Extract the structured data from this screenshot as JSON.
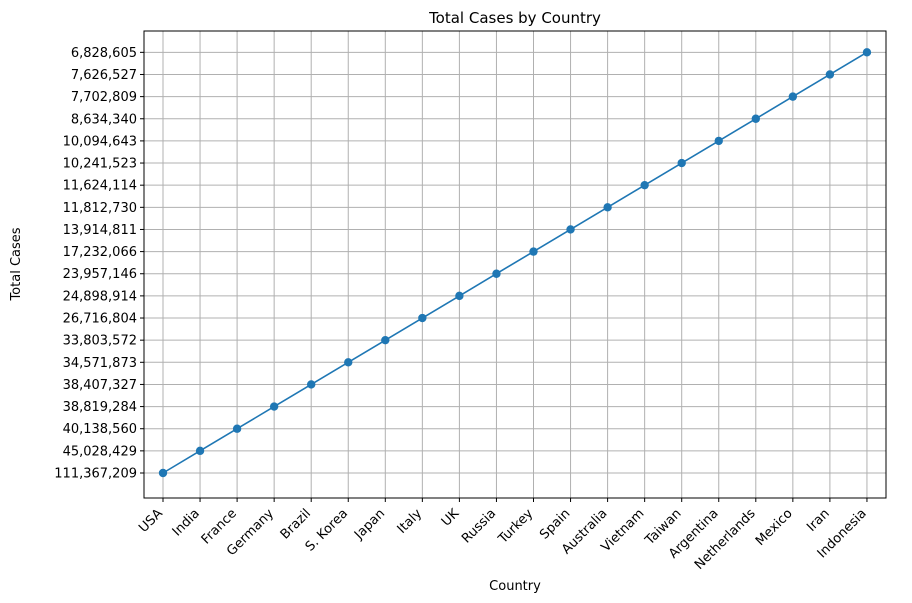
{
  "chart_data": {
    "type": "line",
    "title": "Total Cases by Country",
    "xlabel": "Country",
    "ylabel": "Total Cases",
    "grid": true,
    "categories": [
      "USA",
      "India",
      "France",
      "Germany",
      "Brazil",
      "S. Korea",
      "Japan",
      "Italy",
      "UK",
      "Russia",
      "Turkey",
      "Spain",
      "Australia",
      "Vietnam",
      "Taiwan",
      "Argentina",
      "Netherlands",
      "Mexico",
      "Iran",
      "Indonesia"
    ],
    "y_tick_labels": [
      "111,367,209",
      "45,028,429",
      "40,138,560",
      "38,819,284",
      "38,407,327",
      "34,571,873",
      "33,803,572",
      "26,716,804",
      "24,898,914",
      "23,957,146",
      "17,232,066",
      "13,914,811",
      "11,812,730",
      "11,624,114",
      "10,241,523",
      "10,094,643",
      "8,634,340",
      "7,702,809",
      "7,626,527",
      "6,828,605"
    ],
    "series": [
      {
        "color": "#1f77b4",
        "values": [
          111367209,
          45028429,
          40138560,
          38819284,
          38407327,
          34571873,
          33803572,
          26716804,
          24898914,
          23957146,
          17232066,
          13914811,
          11812730,
          11624114,
          10241523,
          10094643,
          8634340,
          7702809,
          7626527,
          6828605
        ]
      }
    ]
  }
}
